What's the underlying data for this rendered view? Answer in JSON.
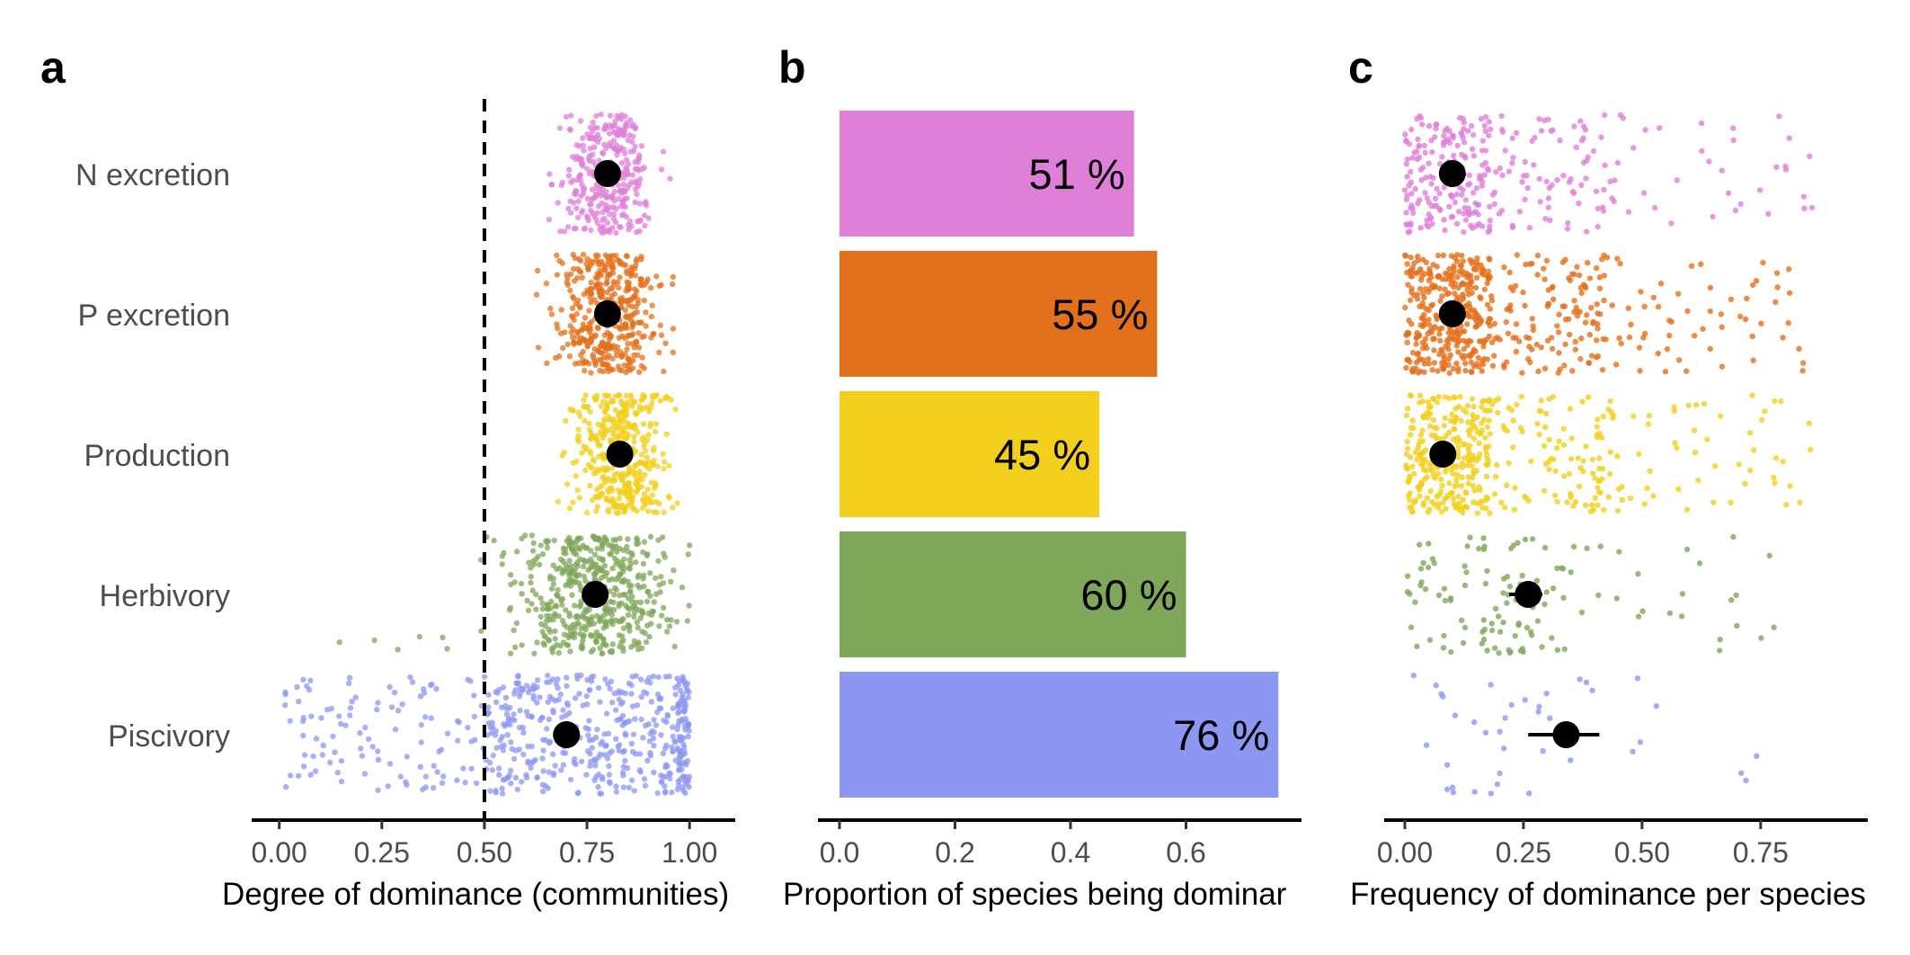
{
  "categories": [
    "N excretion",
    "P excretion",
    "Production",
    "Herbivory",
    "Piscivory"
  ],
  "colors": {
    "N excretion": "#e07fd8",
    "P excretion": "#e3701c",
    "Production": "#f2cf1c",
    "Herbivory": "#7fa75a",
    "Piscivory": "#8c97f2"
  },
  "chart_data": [
    {
      "panel": "a",
      "type": "scatter",
      "xlabel": "Degree of dominance (communities)",
      "xticks": [
        "0.00",
        "0.25",
        "0.50",
        "0.75",
        "1.00"
      ],
      "xlim": [
        -0.03,
        1.05
      ],
      "reference_line": {
        "x": 0.5,
        "style": "dashed"
      },
      "means": [
        {
          "category": "N excretion",
          "value": 0.8
        },
        {
          "category": "P excretion",
          "value": 0.8
        },
        {
          "category": "Production",
          "value": 0.83
        },
        {
          "category": "Herbivory",
          "value": 0.77
        },
        {
          "category": "Piscivory",
          "value": 0.7
        }
      ],
      "point_clouds": [
        {
          "category": "N excretion",
          "n": 320,
          "min": 0.59,
          "max": 0.96,
          "center": 0.8,
          "spread": 0.055
        },
        {
          "category": "P excretion",
          "n": 420,
          "min": 0.58,
          "max": 0.96,
          "center": 0.8,
          "spread": 0.06
        },
        {
          "category": "Production",
          "n": 420,
          "min": 0.62,
          "max": 0.97,
          "center": 0.83,
          "spread": 0.055
        },
        {
          "category": "Herbivory",
          "n": 520,
          "min": 0.14,
          "max": 1.0,
          "center": 0.77,
          "spread": 0.1
        },
        {
          "category": "Piscivory",
          "n": 560,
          "min": 0.01,
          "max": 1.0,
          "center": 0.72,
          "spread": 0.2
        }
      ]
    },
    {
      "panel": "b",
      "type": "bar",
      "xlabel": "Proportion of species being dominar",
      "xticks": [
        "0.0",
        "0.2",
        "0.4",
        "0.6"
      ],
      "xlim": [
        -0.03,
        0.81
      ],
      "bars": [
        {
          "category": "N excretion",
          "value": 0.51,
          "label": "51 %"
        },
        {
          "category": "P excretion",
          "value": 0.55,
          "label": "55 %"
        },
        {
          "category": "Production",
          "value": 0.45,
          "label": "45 %"
        },
        {
          "category": "Herbivory",
          "value": 0.6,
          "label": "60 %"
        },
        {
          "category": "Piscivory",
          "value": 0.76,
          "label": "76 %"
        }
      ]
    },
    {
      "panel": "c",
      "type": "scatter",
      "xlabel": "Frequency of dominance per species",
      "xticks": [
        "0.00",
        "0.25",
        "0.50",
        "0.75"
      ],
      "xlim": [
        -0.04,
        0.9
      ],
      "means": [
        {
          "category": "N excretion",
          "value": 0.1,
          "ci": [
            0.09,
            0.11
          ]
        },
        {
          "category": "P excretion",
          "value": 0.1,
          "ci": [
            0.09,
            0.11
          ]
        },
        {
          "category": "Production",
          "value": 0.08,
          "ci": [
            0.07,
            0.09
          ]
        },
        {
          "category": "Herbivory",
          "value": 0.26,
          "ci": [
            0.22,
            0.29
          ]
        },
        {
          "category": "Piscivory",
          "value": 0.34,
          "ci": [
            0.26,
            0.41
          ]
        }
      ],
      "point_clouds": [
        {
          "category": "N excretion",
          "n": 300,
          "min": 0.0,
          "max": 0.86
        },
        {
          "category": "P excretion",
          "n": 520,
          "min": 0.0,
          "max": 0.84
        },
        {
          "category": "Production",
          "n": 420,
          "min": 0.0,
          "max": 0.86
        },
        {
          "category": "Herbivory",
          "n": 120,
          "min": 0.0,
          "max": 0.78
        },
        {
          "category": "Piscivory",
          "n": 40,
          "min": 0.0,
          "max": 0.78
        }
      ]
    }
  ],
  "panel_letters": [
    "a",
    "b",
    "c"
  ]
}
